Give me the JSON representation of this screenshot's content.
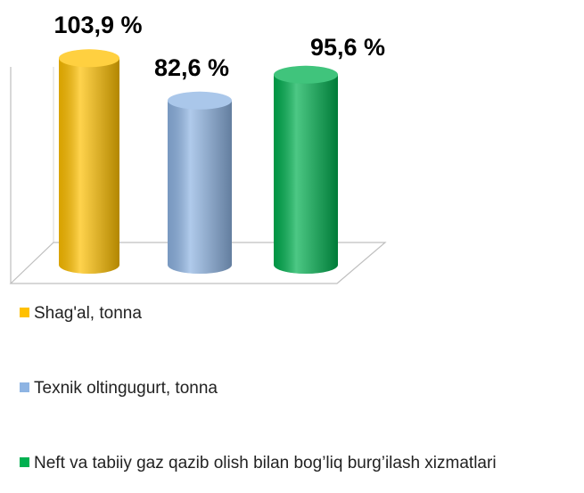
{
  "chart_data": {
    "type": "cylinder",
    "series": [
      {
        "name": "Shag'al, tonna",
        "color": "#ffc000",
        "values": [
          103.9
        ],
        "value_labels": [
          "103,9 %"
        ]
      },
      {
        "name": "Texnik oltingugurt, tonna",
        "color": "#8eb4e3",
        "values": [
          82.6
        ],
        "value_labels": [
          "82,6 %"
        ]
      },
      {
        "name": "Neft va tabiiy gaz qazib olish bilan bog’liq burg’ilash xizmatlari",
        "color": "#00b050",
        "values": [
          95.6
        ],
        "value_labels": [
          "95,6 %"
        ]
      }
    ]
  }
}
